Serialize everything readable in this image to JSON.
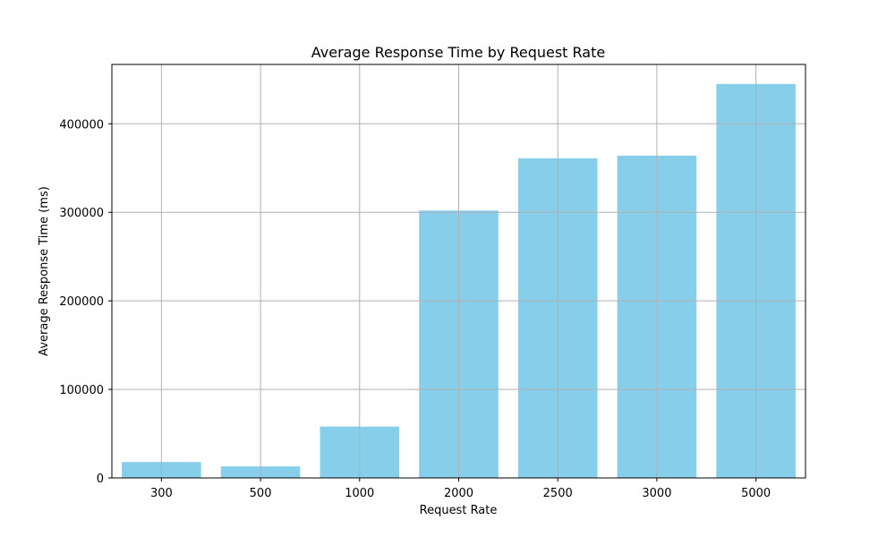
{
  "chart_data": {
    "type": "bar",
    "title": "Average Response Time by Request Rate",
    "xlabel": "Request Rate",
    "ylabel": "Average Response Time (ms)",
    "categories": [
      "300",
      "500",
      "1000",
      "2000",
      "2500",
      "3000",
      "5000"
    ],
    "values": [
      18000,
      13000,
      58000,
      302000,
      361000,
      364000,
      445000
    ],
    "ylim": [
      0,
      467000
    ],
    "yticks": [
      0,
      100000,
      200000,
      300000,
      400000
    ],
    "ytick_labels": [
      "0",
      "100000",
      "200000",
      "300000",
      "400000"
    ],
    "grid": true,
    "bar_color": "#87ceeb",
    "grid_color": "#b0b0b0"
  }
}
